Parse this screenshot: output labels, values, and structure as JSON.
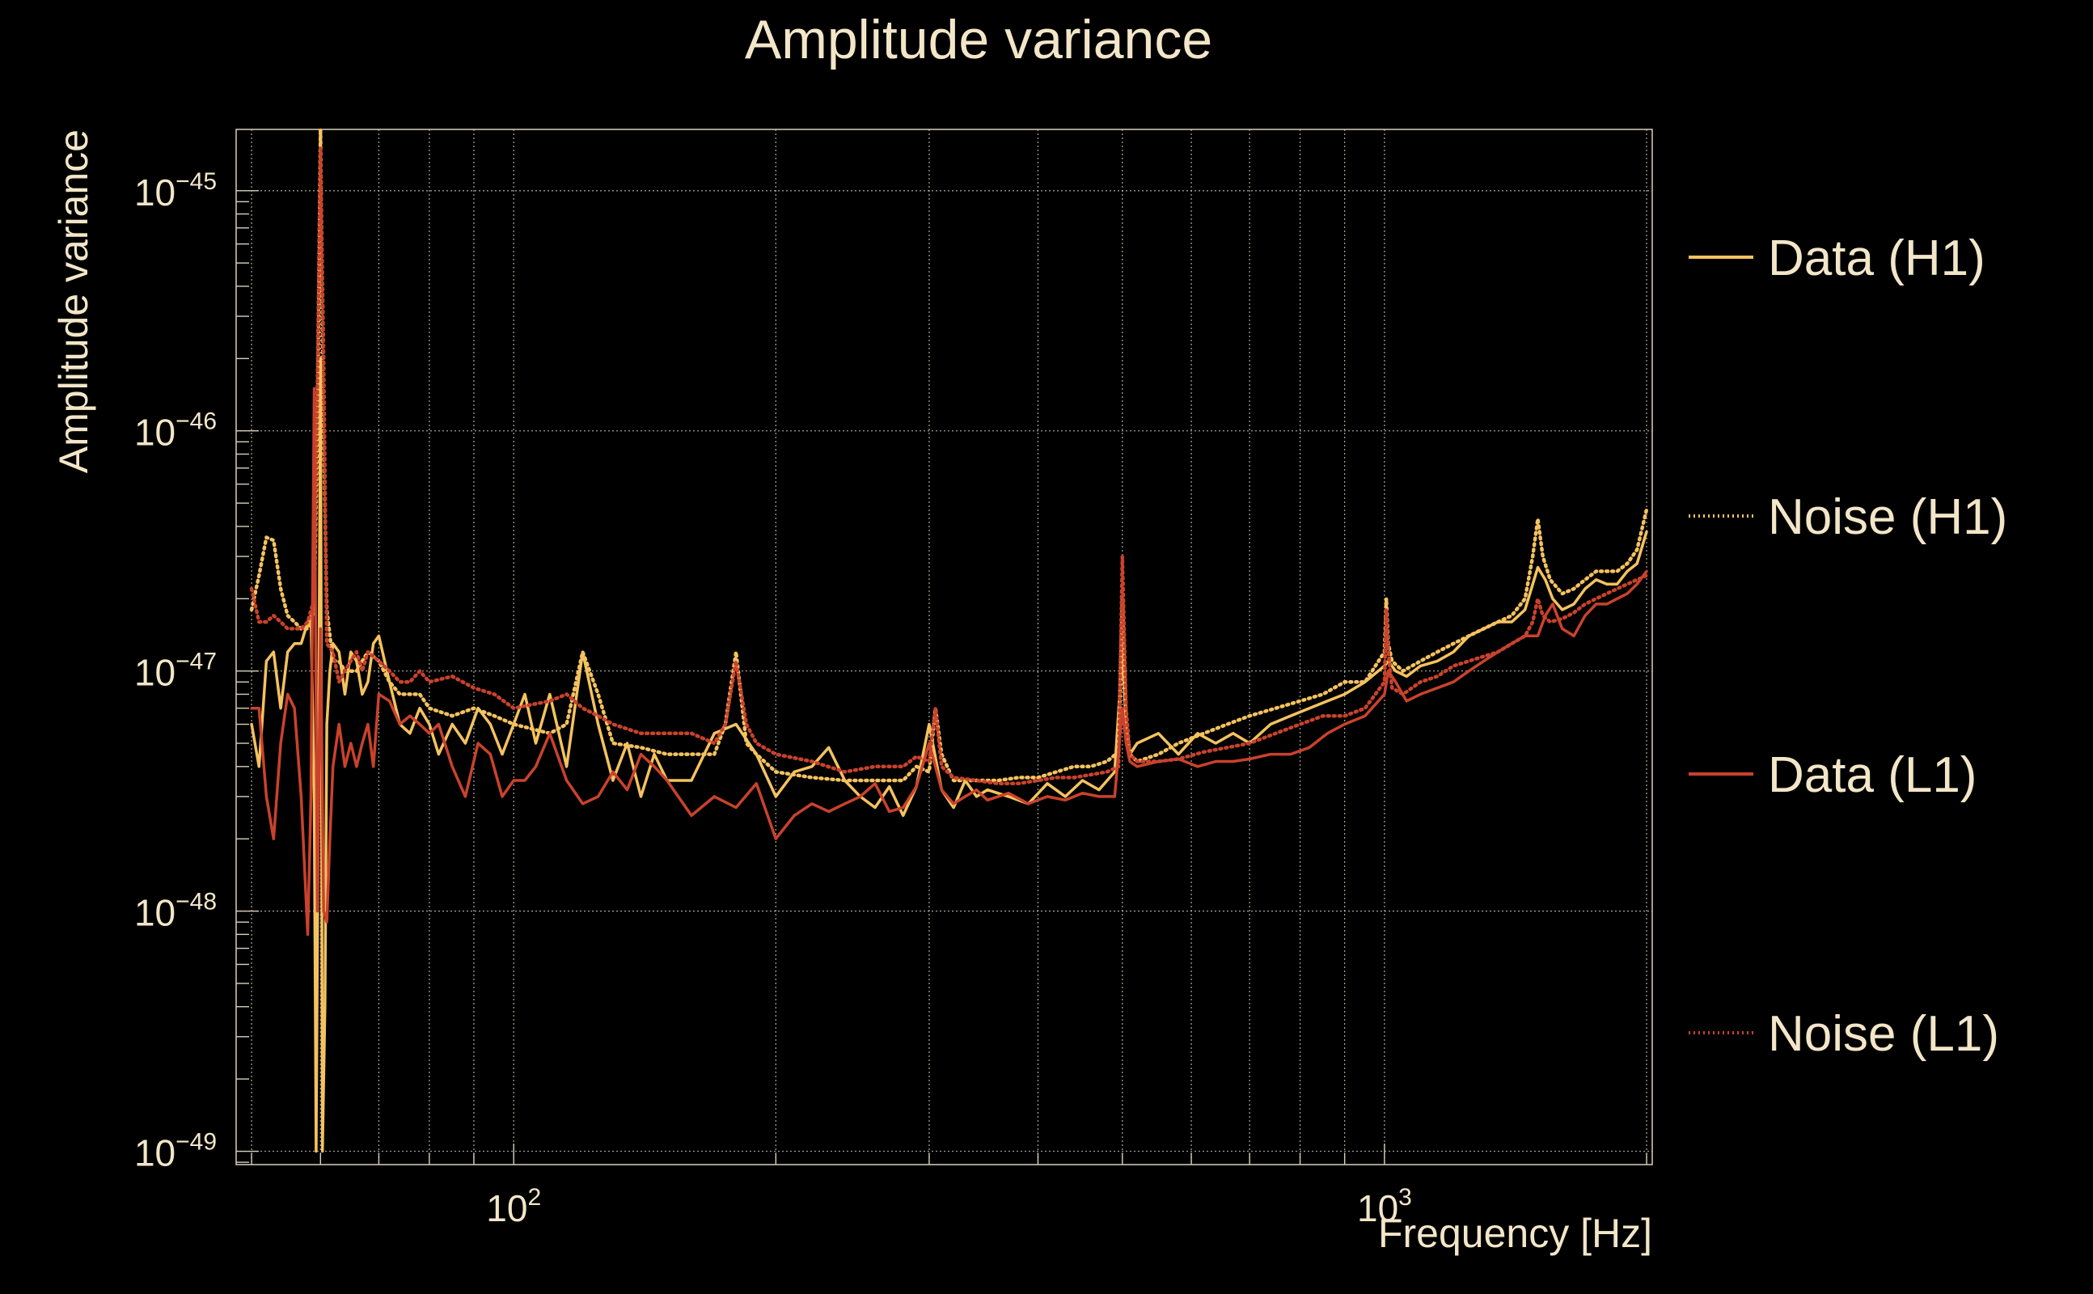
{
  "chart_data": {
    "type": "line",
    "title": "Amplitude variance",
    "xlabel": "Frequency [Hz]",
    "ylabel": "Amplitude variance",
    "xscale": "log",
    "yscale": "log",
    "xlim": [
      48,
      2030
    ],
    "ylim": [
      8.8e-50,
      1.8e-45
    ],
    "grid": true,
    "legend_position": "right",
    "x_ticks": [
      {
        "value": 100,
        "base": "10",
        "exp": "2"
      },
      {
        "value": 1000,
        "base": "10",
        "exp": "3"
      }
    ],
    "y_ticks": [
      {
        "value": 1e-49,
        "base": "10",
        "exp": "−49"
      },
      {
        "value": 1e-48,
        "base": "10",
        "exp": "−48"
      },
      {
        "value": 1e-47,
        "base": "10",
        "exp": "−47"
      },
      {
        "value": 1e-46,
        "base": "10",
        "exp": "−46"
      },
      {
        "value": 1e-45,
        "base": "10",
        "exp": "−45"
      }
    ],
    "series": [
      {
        "name": "Data (H1)",
        "color": "#f4c25f",
        "style": "solid",
        "x": [
          50,
          51,
          52,
          53,
          54,
          55,
          56,
          57,
          58,
          58.5,
          59,
          59.3,
          59.7,
          60,
          60.3,
          60.7,
          61,
          61.5,
          62,
          63,
          64,
          65,
          66,
          67,
          68,
          69,
          70,
          72,
          74,
          76,
          78,
          80,
          82,
          85,
          88,
          91,
          94,
          97,
          100,
          103,
          106,
          110,
          115,
          120,
          125,
          130,
          135,
          140,
          145,
          150,
          160,
          170,
          180,
          190,
          200,
          210,
          220,
          230,
          240,
          250,
          260,
          270,
          280,
          290,
          300,
          310,
          320,
          330,
          340,
          350,
          370,
          390,
          410,
          430,
          450,
          470,
          490,
          500,
          505,
          510,
          520,
          550,
          580,
          610,
          640,
          670,
          700,
          740,
          780,
          820,
          860,
          900,
          950,
          1000,
          1010,
          1030,
          1060,
          1100,
          1150,
          1200,
          1250,
          1300,
          1350,
          1400,
          1450,
          1500,
          1530,
          1560,
          1600,
          1650,
          1700,
          1750,
          1800,
          1850,
          1900,
          1950,
          2000
        ],
        "y": [
          6e-48,
          4e-48,
          1.1e-47,
          1.2e-47,
          7e-48,
          1.2e-47,
          1.3e-47,
          1.3e-47,
          1.6e-47,
          1.7e-47,
          3e-48,
          1e-49,
          5e-48,
          2e-46,
          1e-49,
          4e-49,
          6e-48,
          1e-47,
          1.3e-47,
          1.2e-47,
          8e-48,
          1.2e-47,
          1.1e-47,
          8e-48,
          9e-48,
          1.3e-47,
          1.4e-47,
          9e-48,
          6e-48,
          5.5e-48,
          7e-48,
          6e-48,
          4.5e-48,
          6e-48,
          5e-48,
          7e-48,
          6e-48,
          4.5e-48,
          6e-48,
          8e-48,
          5e-48,
          8e-48,
          4e-48,
          1.2e-47,
          6e-48,
          3.5e-48,
          5e-48,
          3e-48,
          4.5e-48,
          3.5e-48,
          3.5e-48,
          5.5e-48,
          6e-48,
          4.5e-48,
          3e-48,
          3.8e-48,
          4e-48,
          4.8e-48,
          3.5e-48,
          3e-48,
          2.7e-48,
          3.3e-48,
          2.5e-48,
          3.3e-48,
          6e-48,
          3.2e-48,
          2.7e-48,
          3.5e-48,
          3e-48,
          3.2e-48,
          3e-48,
          2.8e-48,
          3.4e-48,
          3e-48,
          3.5e-48,
          3.2e-48,
          3.8e-48,
          1.2e-47,
          6e-48,
          4.5e-48,
          5e-48,
          5.5e-48,
          4.5e-48,
          5.5e-48,
          5e-48,
          5.5e-48,
          5e-48,
          6e-48,
          6.5e-48,
          7e-48,
          7.5e-48,
          8e-48,
          9e-48,
          1.05e-47,
          1.1e-47,
          1e-47,
          9.5e-48,
          1.05e-47,
          1.1e-47,
          1.2e-47,
          1.4e-47,
          1.5e-47,
          1.6e-47,
          1.6e-47,
          1.8e-47,
          2.7e-47,
          2.4e-47,
          2e-47,
          1.8e-47,
          1.9e-47,
          2.2e-47,
          2.4e-47,
          2.3e-47,
          2.3e-47,
          2.6e-47,
          2.8e-47,
          3.8e-47
        ]
      },
      {
        "name": "Noise (H1)",
        "color": "#f4c25f",
        "style": "dotted",
        "x": [
          50,
          51,
          52,
          53,
          54,
          55,
          56,
          57,
          58,
          59,
          59.5,
          60,
          60.5,
          61,
          62,
          63,
          64,
          65,
          66,
          67,
          68,
          70,
          72,
          74,
          76,
          78,
          80,
          85,
          90,
          95,
          100,
          110,
          115,
          120,
          125,
          130,
          140,
          150,
          160,
          170,
          175,
          180,
          185,
          190,
          200,
          220,
          240,
          260,
          280,
          290,
          300,
          305,
          310,
          320,
          340,
          360,
          380,
          400,
          420,
          440,
          460,
          480,
          495,
          500,
          505,
          510,
          520,
          550,
          580,
          620,
          660,
          700,
          750,
          800,
          850,
          900,
          950,
          1000,
          1005,
          1010,
          1020,
          1050,
          1100,
          1150,
          1200,
          1250,
          1300,
          1350,
          1400,
          1450,
          1480,
          1500,
          1520,
          1550,
          1600,
          1650,
          1700,
          1750,
          1800,
          1850,
          1900,
          1950,
          2000
        ],
        "y": [
          1.8e-47,
          2.5e-47,
          3.6e-47,
          3.5e-47,
          2.2e-47,
          1.7e-47,
          1.6e-47,
          1.5e-47,
          1.5e-47,
          1.8e-47,
          1e-46,
          1.8e-45,
          1e-46,
          1.8e-47,
          1.1e-47,
          1.1e-47,
          1e-47,
          1e-47,
          1e-47,
          1.1e-47,
          1.2e-47,
          1.1e-47,
          9e-48,
          8e-48,
          8e-48,
          8e-48,
          7e-48,
          6.5e-48,
          7e-48,
          6.5e-48,
          6e-48,
          5.5e-48,
          6e-48,
          1.2e-47,
          8e-48,
          5e-48,
          4.8e-48,
          4.5e-48,
          4.5e-48,
          4.5e-48,
          6e-48,
          1.2e-47,
          5e-48,
          4.5e-48,
          3.8e-48,
          3.6e-48,
          3.5e-48,
          3.5e-48,
          3.5e-48,
          4e-48,
          3.8e-48,
          7e-48,
          4.5e-48,
          3.5e-48,
          3.5e-48,
          3.5e-48,
          3.6e-48,
          3.6e-48,
          3.8e-48,
          4e-48,
          4e-48,
          4.2e-48,
          4.6e-48,
          2e-47,
          6e-48,
          4.5e-48,
          4.2e-48,
          4.5e-48,
          5e-48,
          5.5e-48,
          6e-48,
          6.5e-48,
          7e-48,
          7.5e-48,
          8e-48,
          9e-48,
          9e-48,
          1.2e-47,
          2e-47,
          1.3e-47,
          1.1e-47,
          1e-47,
          1.1e-47,
          1.2e-47,
          1.3e-47,
          1.4e-47,
          1.5e-47,
          1.6e-47,
          1.7e-47,
          2e-47,
          3e-47,
          4.3e-47,
          3e-47,
          2.4e-47,
          2.1e-47,
          2.2e-47,
          2.4e-47,
          2.6e-47,
          2.6e-47,
          2.6e-47,
          2.8e-47,
          3.2e-47,
          4.7e-47
        ]
      },
      {
        "name": "Data (L1)",
        "color": "#c9422c",
        "style": "solid",
        "x": [
          50,
          51,
          52,
          53,
          54,
          55,
          56,
          57,
          58,
          58.5,
          59,
          59.5,
          60,
          60.5,
          61,
          61.5,
          62,
          63,
          64,
          65,
          66,
          67,
          68,
          69,
          70,
          72,
          74,
          76,
          78,
          80,
          82,
          85,
          88,
          91,
          94,
          97,
          100,
          103,
          106,
          110,
          115,
          120,
          125,
          130,
          135,
          140,
          145,
          150,
          160,
          170,
          180,
          190,
          200,
          210,
          220,
          230,
          240,
          250,
          260,
          270,
          280,
          290,
          300,
          310,
          320,
          330,
          340,
          350,
          370,
          390,
          410,
          430,
          450,
          470,
          490,
          500,
          505,
          510,
          520,
          550,
          580,
          610,
          640,
          670,
          700,
          740,
          780,
          820,
          860,
          900,
          950,
          1000,
          1010,
          1030,
          1060,
          1100,
          1150,
          1200,
          1250,
          1300,
          1350,
          1400,
          1450,
          1500,
          1530,
          1560,
          1600,
          1650,
          1700,
          1750,
          1800,
          1850,
          1900,
          1950,
          2000
        ],
        "y": [
          7e-48,
          7e-48,
          3e-48,
          2e-48,
          5e-48,
          8e-48,
          7e-48,
          3e-48,
          8e-49,
          3e-48,
          1.5e-46,
          1e-48,
          1.5e-47,
          1e-48,
          9e-49,
          2e-48,
          4e-48,
          6e-48,
          4e-48,
          5e-48,
          4e-48,
          5e-48,
          6e-48,
          4e-48,
          8e-48,
          7.5e-48,
          6e-48,
          6.5e-48,
          6e-48,
          5.5e-48,
          6e-48,
          4e-48,
          3e-48,
          5e-48,
          4.5e-48,
          3e-48,
          3.5e-48,
          3.5e-48,
          4e-48,
          5.5e-48,
          3.5e-48,
          2.8e-48,
          3e-48,
          3.8e-48,
          3.2e-48,
          4.5e-48,
          4e-48,
          3.5e-48,
          2.5e-48,
          3e-48,
          2.7e-48,
          3.4e-48,
          2e-48,
          2.5e-48,
          2.8e-48,
          2.6e-48,
          2.8e-48,
          3e-48,
          3.4e-48,
          2.6e-48,
          2.7e-48,
          3.3e-48,
          5e-48,
          3.2e-48,
          2.8e-48,
          3e-48,
          3.2e-48,
          2.9e-48,
          3.1e-48,
          2.8e-48,
          3e-48,
          2.9e-48,
          3.1e-48,
          3e-48,
          3e-48,
          7e-48,
          5e-48,
          4.2e-48,
          4e-48,
          4.2e-48,
          4.3e-48,
          4e-48,
          4.2e-48,
          4.2e-48,
          4.3e-48,
          4.5e-48,
          4.5e-48,
          4.8e-48,
          5.5e-48,
          6e-48,
          6.5e-48,
          8e-48,
          1e-47,
          9e-48,
          7.5e-48,
          8e-48,
          8.5e-48,
          9e-48,
          1e-47,
          1.1e-47,
          1.2e-47,
          1.3e-47,
          1.4e-47,
          1.4e-47,
          1.7e-47,
          1.9e-47,
          1.5e-47,
          1.4e-47,
          1.7e-47,
          1.9e-47,
          1.9e-47,
          2e-47,
          2.1e-47,
          2.3e-47,
          2.6e-47
        ]
      },
      {
        "name": "Noise (L1)",
        "color": "#c9422c",
        "style": "dotted",
        "x": [
          50,
          51,
          52,
          53,
          54,
          55,
          56,
          57,
          58,
          59,
          59.5,
          60,
          60.5,
          61,
          62,
          63,
          64,
          65,
          66,
          67,
          68,
          70,
          72,
          74,
          76,
          78,
          80,
          85,
          90,
          95,
          100,
          110,
          115,
          120,
          125,
          130,
          140,
          150,
          160,
          170,
          175,
          180,
          185,
          190,
          200,
          220,
          240,
          260,
          280,
          290,
          300,
          305,
          310,
          320,
          340,
          360,
          380,
          400,
          420,
          440,
          460,
          480,
          495,
          500,
          505,
          510,
          520,
          550,
          580,
          620,
          660,
          700,
          750,
          800,
          850,
          900,
          950,
          1000,
          1005,
          1010,
          1020,
          1050,
          1100,
          1150,
          1200,
          1250,
          1300,
          1350,
          1400,
          1450,
          1480,
          1500,
          1520,
          1550,
          1600,
          1650,
          1700,
          1750,
          1800,
          1850,
          1900,
          1950,
          2000
        ],
        "y": [
          2.2e-47,
          1.6e-47,
          1.6e-47,
          1.7e-47,
          1.6e-47,
          1.5e-47,
          1.5e-47,
          1.5e-47,
          1.6e-47,
          2e-47,
          1.5e-46,
          1.5e-45,
          2e-46,
          1.3e-47,
          1.2e-47,
          9e-48,
          1e-47,
          1.1e-47,
          1.2e-47,
          1e-47,
          1.2e-47,
          1.1e-47,
          1e-47,
          9e-48,
          9e-48,
          1e-47,
          9e-48,
          9.5e-48,
          8.5e-48,
          8e-48,
          7e-48,
          7.5e-48,
          8e-48,
          7e-48,
          6.5e-48,
          6e-48,
          5.5e-48,
          5.5e-48,
          5.5e-48,
          5e-48,
          6e-48,
          1.1e-47,
          6e-48,
          5e-48,
          4.5e-48,
          4.2e-48,
          3.8e-48,
          4e-48,
          4e-48,
          4.4e-48,
          4.2e-48,
          7e-48,
          4e-48,
          3.6e-48,
          3.5e-48,
          3.4e-48,
          3.4e-48,
          3.5e-48,
          3.6e-48,
          3.6e-48,
          3.7e-48,
          3.8e-48,
          4e-48,
          3e-47,
          7e-48,
          4.5e-48,
          4.2e-48,
          4.2e-48,
          4.3e-48,
          4.6e-48,
          4.8e-48,
          5e-48,
          5.5e-48,
          6e-48,
          6.5e-48,
          6.5e-48,
          7e-48,
          9e-48,
          1.8e-47,
          1.2e-47,
          8.5e-48,
          8e-48,
          9e-48,
          9.5e-48,
          1.05e-47,
          1.1e-47,
          1.15e-47,
          1.2e-47,
          1.3e-47,
          1.4e-47,
          1.6e-47,
          2e-47,
          1.7e-47,
          1.6e-47,
          1.65e-47,
          1.75e-47,
          1.9e-47,
          2e-47,
          2.1e-47,
          2.2e-47,
          2.3e-47,
          2.4e-47,
          2.5e-47
        ]
      }
    ]
  }
}
